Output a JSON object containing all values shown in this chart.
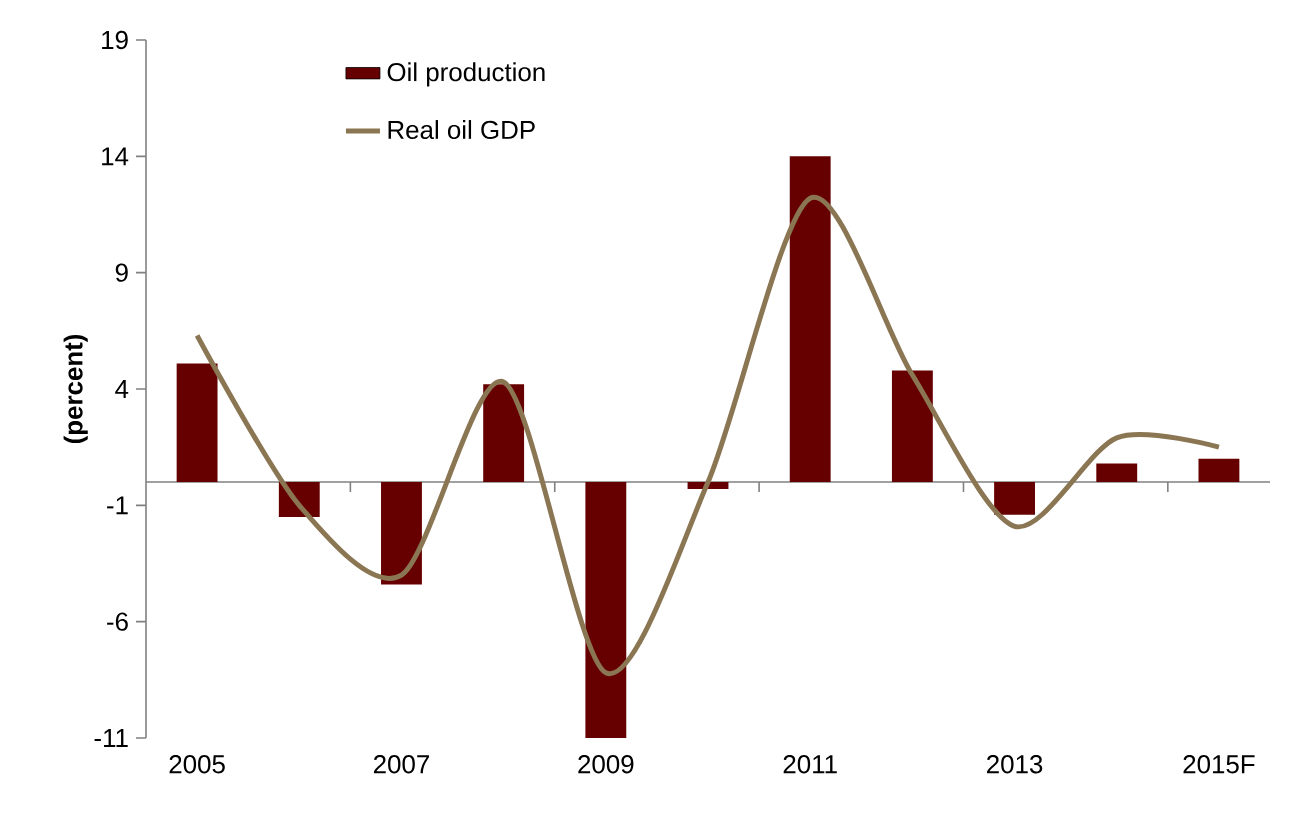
{
  "chart_data": {
    "type": "bar",
    "ylabel": "(percent)",
    "categories": [
      "2005",
      null,
      "2007",
      null,
      "2009",
      null,
      "2011",
      null,
      "2013",
      null,
      "2015F"
    ],
    "series": [
      {
        "name": "Oil production",
        "color": "#660000",
        "values": [
          5.1,
          -1.5,
          -4.4,
          4.2,
          -11.0,
          -0.3,
          14.0,
          4.8,
          -1.4,
          0.8,
          1.0
        ]
      },
      {
        "name": "Real oil GDP",
        "type": "line",
        "color": "#8b7653",
        "values": [
          6.3,
          -1.0,
          -4.0,
          4.3,
          -8.2,
          0.0,
          12.2,
          4.6,
          -1.9,
          1.9,
          1.5
        ]
      }
    ],
    "ylim": [
      -11,
      19
    ],
    "yticks": [
      -11,
      -6,
      -1,
      4,
      9,
      14,
      19
    ],
    "legend": "top left",
    "grid": false
  }
}
